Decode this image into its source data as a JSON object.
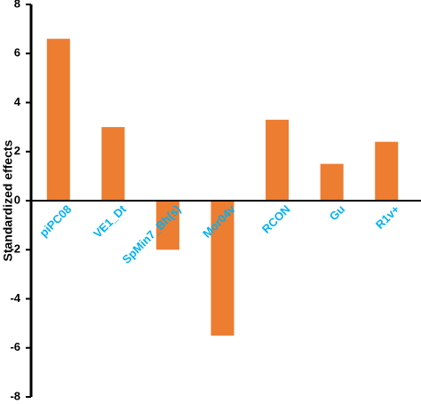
{
  "chart_data": {
    "type": "bar",
    "y_label": "Standardized effects",
    "categories": [
      "piPC08",
      "VE1_Dt",
      "SpMin7_Bh(s)",
      "Mor04v",
      "RCON",
      "Gu",
      "R1v+"
    ],
    "values": [
      6.6,
      3.0,
      -2.0,
      -5.5,
      3.3,
      1.5,
      2.4
    ],
    "color": "#ed7d31",
    "label_color": "#00b0f0",
    "ylim": [
      -8,
      8
    ],
    "yticks": [
      -8,
      -6,
      -4,
      -2,
      0,
      2,
      4,
      6,
      8
    ],
    "grid": false
  }
}
